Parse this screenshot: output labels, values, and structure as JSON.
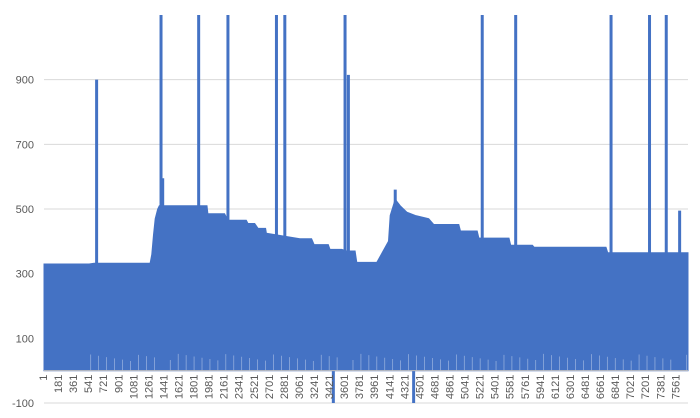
{
  "chart_data": {
    "type": "area",
    "title": "",
    "xlabel": "",
    "ylabel": "",
    "ylim": [
      -100,
      1100
    ],
    "yticks": [
      -100,
      100,
      300,
      500,
      700,
      900
    ],
    "grid": true,
    "legend": "none",
    "color": "#4472C4",
    "x_range": [
      1,
      7700
    ],
    "x_ticks": [
      1,
      181,
      361,
      541,
      721,
      901,
      1081,
      1261,
      1441,
      1621,
      1801,
      1981,
      2161,
      2341,
      2521,
      2701,
      2881,
      3061,
      3241,
      3421,
      3601,
      3781,
      3961,
      4141,
      4321,
      4501,
      4681,
      4861,
      5041,
      5221,
      5401,
      5581,
      5761,
      5941,
      6121,
      6301,
      6481,
      6661,
      6841,
      7021,
      7201,
      7381,
      7561
    ],
    "envelope": [
      [
        1,
        330
      ],
      [
        540,
        330
      ],
      [
        600,
        332
      ],
      [
        1270,
        332
      ],
      [
        1290,
        360
      ],
      [
        1310,
        420
      ],
      [
        1330,
        470
      ],
      [
        1360,
        500
      ],
      [
        1380,
        510
      ],
      [
        1950,
        510
      ],
      [
        1960,
        485
      ],
      [
        2160,
        485
      ],
      [
        2200,
        465
      ],
      [
        2420,
        465
      ],
      [
        2440,
        455
      ],
      [
        2520,
        455
      ],
      [
        2560,
        440
      ],
      [
        2650,
        440
      ],
      [
        2660,
        425
      ],
      [
        3060,
        408
      ],
      [
        3200,
        408
      ],
      [
        3230,
        390
      ],
      [
        3400,
        390
      ],
      [
        3420,
        375
      ],
      [
        3560,
        375
      ],
      [
        3620,
        370
      ],
      [
        3720,
        370
      ],
      [
        3740,
        335
      ],
      [
        3980,
        335
      ],
      [
        4120,
        400
      ],
      [
        4140,
        480
      ],
      [
        4200,
        530
      ],
      [
        4260,
        510
      ],
      [
        4340,
        490
      ],
      [
        4440,
        480
      ],
      [
        4600,
        470
      ],
      [
        4660,
        452
      ],
      [
        4960,
        452
      ],
      [
        4980,
        432
      ],
      [
        5180,
        432
      ],
      [
        5200,
        410
      ],
      [
        5560,
        410
      ],
      [
        5580,
        388
      ],
      [
        5840,
        388
      ],
      [
        5860,
        382
      ],
      [
        6720,
        382
      ],
      [
        6740,
        365
      ],
      [
        7700,
        365
      ]
    ],
    "baseline": 30,
    "spikes": [
      {
        "x": 630,
        "y": 900
      },
      {
        "x": 1400,
        "y": 1100
      },
      {
        "x": 1420,
        "y": 595
      },
      {
        "x": 1850,
        "y": 1100
      },
      {
        "x": 2200,
        "y": 1100
      },
      {
        "x": 2780,
        "y": 1100
      },
      {
        "x": 2880,
        "y": 1100
      },
      {
        "x": 3600,
        "y": 1100
      },
      {
        "x": 3640,
        "y": 915
      },
      {
        "x": 4200,
        "y": 560
      },
      {
        "x": 5240,
        "y": 1100
      },
      {
        "x": 5640,
        "y": 1100
      },
      {
        "x": 6780,
        "y": 1100
      },
      {
        "x": 7240,
        "y": 1100
      },
      {
        "x": 7440,
        "y": 1100
      },
      {
        "x": 7600,
        "y": 495
      }
    ],
    "dips": [
      {
        "x": 3460,
        "y": -100
      },
      {
        "x": 4420,
        "y": -100
      }
    ]
  }
}
